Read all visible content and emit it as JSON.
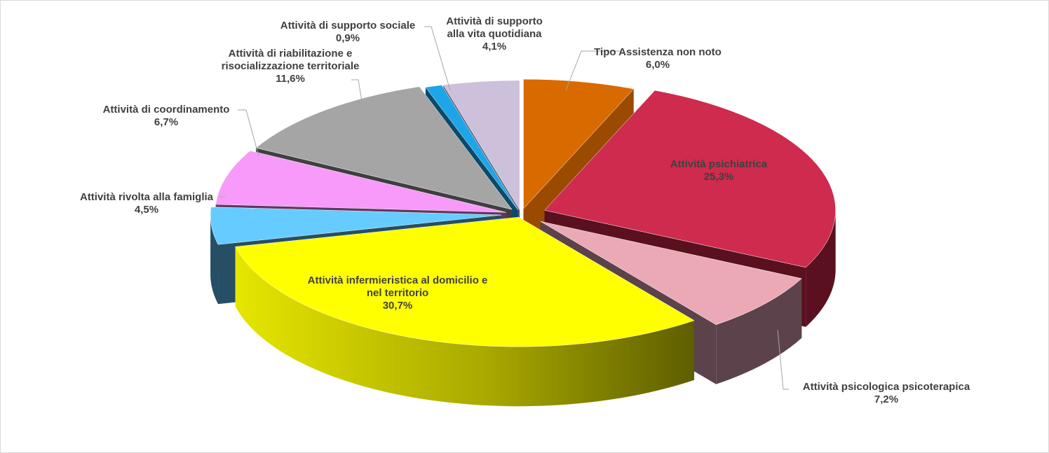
{
  "chart_data": {
    "type": "pie",
    "style": "3d-exploded",
    "title": "",
    "slices": [
      {
        "label": "Tipo Assistenza non noto",
        "value": "6,0%",
        "pct": 6.0,
        "color": "#D86A00",
        "side_color": "#9A4B00",
        "label_position": "outside"
      },
      {
        "label": "Attività psichiatrica",
        "value": "25,3%",
        "pct": 25.3,
        "color": "#CE2B4E",
        "side_color": "#5A101E",
        "label_position": "inside"
      },
      {
        "label": "Attività psicologica psicoterapica",
        "value": "7,2%",
        "pct": 7.2,
        "color": "#EBA9B6",
        "side_color": "#5C424A",
        "label_position": "outside"
      },
      {
        "label": "Attività infermieristica al domicilio e nel territorio",
        "value": "30,7%",
        "pct": 30.7,
        "color": "#FFFF00",
        "side_color": "#8A8A00",
        "label_position": "inside"
      },
      {
        "label": "Attività rivolta alla famiglia",
        "value": "4,5%",
        "pct": 4.5,
        "color": "#66CCFF",
        "side_color": "#264F66",
        "label_position": "outside"
      },
      {
        "label": "Attività di coordinamento",
        "value": "6,7%",
        "pct": 6.7,
        "color": "#F79AF9",
        "side_color": "#62375F",
        "label_position": "outside"
      },
      {
        "label": "Attività di riabilitazione e risocializzazione territoriale",
        "value": "11,6%",
        "pct": 11.6,
        "color": "#A5A5A5",
        "side_color": "#3F3F3F",
        "label_position": "outside"
      },
      {
        "label": "Attività di supporto sociale",
        "value": "0,9%",
        "pct": 0.9,
        "color": "#1EA5E8",
        "side_color": "#0B4A68",
        "label_position": "outside"
      },
      {
        "label": "Attività di supporto alla vita quotidiana",
        "value": "4,1%",
        "pct": 4.1,
        "color": "#CCC0DA",
        "side_color": "#5C5670",
        "label_position": "outside"
      }
    ]
  }
}
